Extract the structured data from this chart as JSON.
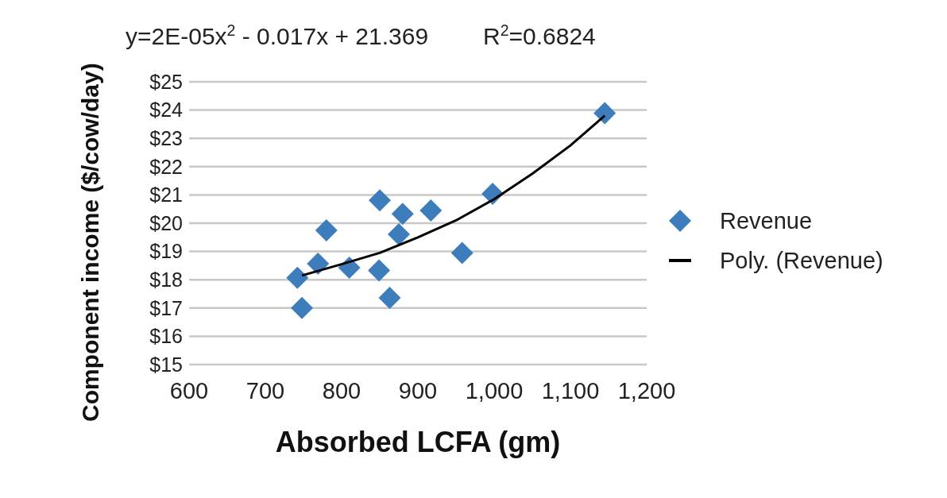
{
  "chart_data": {
    "type": "scatter",
    "xlabel": "Absorbed LCFA (gm)",
    "ylabel": "Component income ($/cow/day)",
    "annotations": [
      "y=2E-05x$^{2}$ - 0.017x + 21.369",
      "R$^{2}$=0.6824"
    ],
    "series": [
      {
        "name": "Revenue",
        "color": "#3e7dbb",
        "marker": "diamond",
        "x": [
          742,
          748,
          769,
          780,
          810,
          849,
          850,
          863,
          880,
          875,
          917,
          958,
          998,
          1145
        ],
        "values": [
          18.07,
          17.0,
          18.57,
          19.75,
          18.43,
          18.33,
          20.81,
          17.36,
          20.33,
          19.61,
          20.45,
          18.95,
          21.04,
          23.89
        ]
      },
      {
        "name": "Poly. (Revenue)",
        "type": "line",
        "color": "#000000",
        "marker": "none",
        "line_style": "solid",
        "x": [
          748,
          800,
          850,
          900,
          950,
          1000,
          1050,
          1100,
          1145
        ],
        "values": [
          18.15,
          18.55,
          18.95,
          19.5,
          20.1,
          20.85,
          21.75,
          22.75,
          23.8
        ]
      }
    ],
    "xlim": [
      600,
      1200
    ],
    "xticks": [
      600,
      700,
      800,
      900,
      {
        "value": 1000,
        "label": "1,000"
      },
      {
        "value": 1100,
        "label": "1,100"
      },
      {
        "value": 1200,
        "label": "1,200"
      }
    ],
    "ylim": [
      15,
      25
    ],
    "yticks": [
      {
        "value": 15,
        "label": "$15"
      },
      {
        "value": 16,
        "label": "$16"
      },
      {
        "value": 17,
        "label": "$17"
      },
      {
        "value": 18,
        "label": "$18"
      },
      {
        "value": 19,
        "label": "$19"
      },
      {
        "value": 20,
        "label": "$20"
      },
      {
        "value": 21,
        "label": "$21"
      },
      {
        "value": 22,
        "label": "$22"
      },
      {
        "value": 23,
        "label": "$23"
      },
      {
        "value": 24,
        "label": "$24"
      },
      {
        "value": 25,
        "label": "$25"
      }
    ],
    "grid": "y",
    "legend": "right"
  }
}
